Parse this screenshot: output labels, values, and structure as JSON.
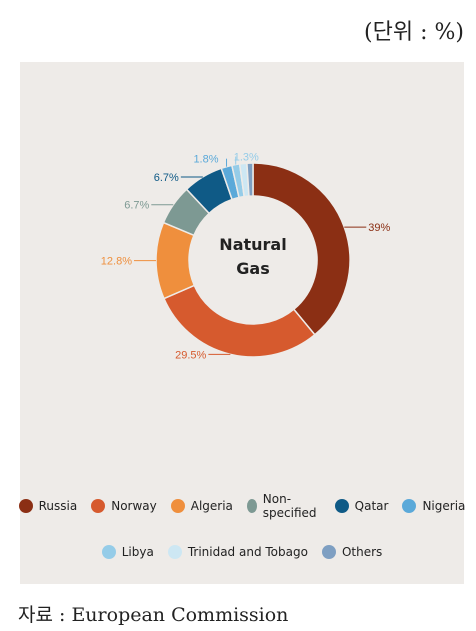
{
  "unit_label": "(단위 : %)",
  "source_label": "자료 : European Commission",
  "chart_data": {
    "type": "pie",
    "center_label": [
      "Natural",
      "Gas"
    ],
    "slices": [
      {
        "name": "Russia",
        "value": 39,
        "label": "39%",
        "color": "#8b2f14"
      },
      {
        "name": "Norway",
        "value": 29.5,
        "label": "29.5%",
        "color": "#d65a2e"
      },
      {
        "name": "Algeria",
        "value": 12.8,
        "label": "12.8%",
        "color": "#ef8f3d"
      },
      {
        "name": "Non-specified",
        "value": 6.7,
        "label": "6.7%",
        "color": "#7d9993"
      },
      {
        "name": "Qatar",
        "value": 6.7,
        "label": "6.7%",
        "color": "#0f5a86"
      },
      {
        "name": "Nigeria",
        "value": 1.8,
        "label": "1.8%",
        "color": "#5ba9d9"
      },
      {
        "name": "Libya",
        "value": 1.3,
        "label": "1.3%",
        "color": "#95cce8"
      },
      {
        "name": "Trinidad and Tobago",
        "value": 1.2,
        "label": "",
        "color": "#cde7f3"
      },
      {
        "name": "Others",
        "value": 1.0,
        "label": "",
        "color": "#7e9fc2"
      }
    ],
    "legend_rows": [
      [
        "Russia",
        "Norway",
        "Algeria",
        "Non-specified",
        "Qatar",
        "Nigeria"
      ],
      [
        "Libya",
        "Trinidad and Tobago",
        "Others"
      ]
    ]
  }
}
